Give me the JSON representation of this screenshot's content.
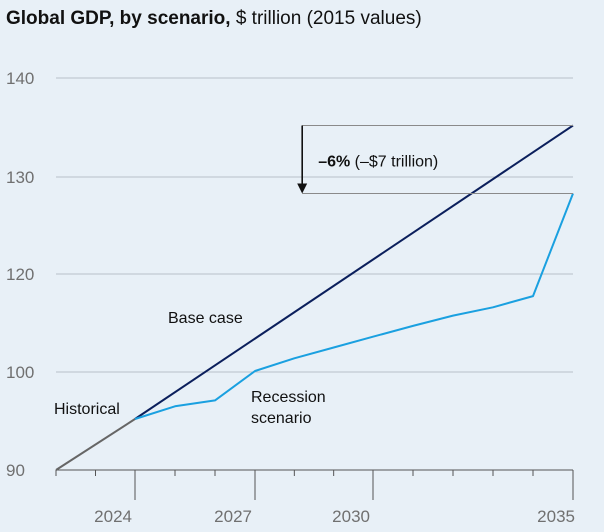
{
  "chart_data": {
    "type": "line",
    "title_bold": "Global GDP, by scenario,",
    "title_rest": " $ trillion (2015 values)",
    "xlim": [
      2022,
      2035
    ],
    "ylim": [
      90,
      140
    ],
    "x_ticks": [
      2022,
      2023,
      2024,
      2025,
      2026,
      2027,
      2028,
      2029,
      2030,
      2031,
      2032,
      2033,
      2034,
      2035
    ],
    "x_tick_labels": [
      {
        "value": 2024,
        "label": "2024"
      },
      {
        "value": 2027,
        "label": "2027"
      },
      {
        "value": 2030,
        "label": "2030"
      },
      {
        "value": 2035,
        "label": "2035"
      }
    ],
    "y_ticks": [
      {
        "value": 90,
        "label": "90"
      },
      {
        "value": 100,
        "label": "100"
      },
      {
        "value": 120,
        "label": "120"
      },
      {
        "value": 130,
        "label": "130"
      },
      {
        "value": 140,
        "label": "140"
      }
    ],
    "series": [
      {
        "name": "Historical",
        "color": "#666666",
        "x": [
          2022,
          2024
        ],
        "y": [
          90,
          95.2
        ]
      },
      {
        "name": "Base case",
        "color": "#0b1f5c",
        "x": [
          2024,
          2035
        ],
        "y": [
          95.2,
          135.2
        ]
      },
      {
        "name": "Recession scenario",
        "color": "#1aa0e0",
        "x": [
          2024,
          2025,
          2026,
          2027,
          2028,
          2029,
          2030,
          2031,
          2032,
          2033,
          2034,
          2035
        ],
        "y": [
          95.2,
          96.5,
          97.1,
          100.2,
          102.8,
          105.0,
          107.2,
          109.4,
          111.5,
          113.2,
          115.5,
          128.3
        ]
      }
    ],
    "labels": {
      "historical": "Historical",
      "base": "Base case",
      "recession_line1": "Recession",
      "recession_line2": "scenario"
    },
    "annotation": {
      "x": 2028.2,
      "y_top": 135.2,
      "y_bottom": 128.3,
      "pct": "–6%",
      "detail": " (–$7 trillion)"
    },
    "colors": {
      "background": "#e8f0f7",
      "grid": "#b8c1c9",
      "axis": "#555555",
      "tick_text": "#707070",
      "bracket": "#8a8a8a"
    }
  }
}
